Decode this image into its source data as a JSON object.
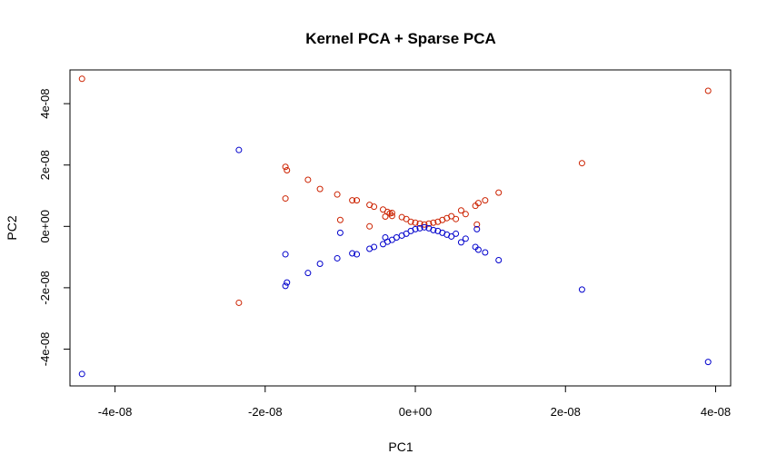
{
  "chart_data": {
    "type": "scatter",
    "title": "Kernel PCA + Sparse PCA",
    "xlabel": "PC1",
    "ylabel": "PC2",
    "xlim": [
      -4.6e-08,
      4.2e-08
    ],
    "ylim": [
      -5.2e-08,
      5.1e-08
    ],
    "grid": false,
    "x_ticks": [
      {
        "value": -4e-08,
        "label": "-4e-08"
      },
      {
        "value": -2e-08,
        "label": "-2e-08"
      },
      {
        "value": 0,
        "label": "0e+00"
      },
      {
        "value": 2e-08,
        "label": "2e-08"
      },
      {
        "value": 4e-08,
        "label": "4e-08"
      }
    ],
    "y_ticks": [
      {
        "value": -4e-08,
        "label": "-4e-08"
      },
      {
        "value": -2e-08,
        "label": "-2e-08"
      },
      {
        "value": 0,
        "label": "0e+00"
      },
      {
        "value": 2e-08,
        "label": "2e-08"
      },
      {
        "value": 4e-08,
        "label": "4e-08"
      }
    ],
    "series": [
      {
        "color": "#CC2200",
        "points": [
          [
            -4.44e-08,
            4.81e-08
          ],
          [
            -2.35e-08,
            -2.49e-08
          ],
          [
            -1.73e-08,
            1.94e-08
          ],
          [
            -1.71e-08,
            1.83e-08
          ],
          [
            -1.73e-08,
            9.1e-09
          ],
          [
            -1.43e-08,
            1.52e-08
          ],
          [
            -1.27e-08,
            1.22e-08
          ],
          [
            -1.04e-08,
            1.04e-08
          ],
          [
            -1e-08,
            2.1e-09
          ],
          [
            -7.8e-09,
            8.5e-09
          ],
          [
            -8.4e-09,
            8.5e-09
          ],
          [
            -6.1e-09,
            7e-09
          ],
          [
            -5.5e-09,
            6.4e-09
          ],
          [
            -6.1e-09,
            0.0
          ],
          [
            -4.3e-09,
            5.5e-09
          ],
          [
            -3.7e-09,
            4.7e-09
          ],
          [
            -3.1e-09,
            4.4e-09
          ],
          [
            -3.4e-09,
            4.2e-09
          ],
          [
            -4e-09,
            3.2e-09
          ],
          [
            -3.1e-09,
            3.4e-09
          ],
          [
            -1.8e-09,
            3e-09
          ],
          [
            -1.2e-09,
            2.4e-09
          ],
          [
            -6e-10,
            1.5e-09
          ],
          [
            0.0,
            1.2e-09
          ],
          [
            6e-10,
            9e-10
          ],
          [
            1.2e-09,
            6e-10
          ],
          [
            1.8e-09,
            9e-10
          ],
          [
            2.4e-09,
            1.2e-09
          ],
          [
            3e-09,
            1.5e-09
          ],
          [
            3.6e-09,
            2.1e-09
          ],
          [
            4.2e-09,
            2.7e-09
          ],
          [
            4.8e-09,
            3.3e-09
          ],
          [
            5.4e-09,
            2.4e-09
          ],
          [
            6.1e-09,
            5.2e-09
          ],
          [
            6.7e-09,
            4e-09
          ],
          [
            8e-09,
            6.7e-09
          ],
          [
            8.4e-09,
            7.6e-09
          ],
          [
            8.2e-09,
            6e-10
          ],
          [
            9.3e-09,
            8.5e-09
          ],
          [
            1.11e-08,
            1.1e-08
          ],
          [
            2.22e-08,
            2.06e-08
          ],
          [
            3.9e-08,
            4.42e-08
          ]
        ]
      },
      {
        "color": "#0000CC",
        "points": [
          [
            -4.44e-08,
            -4.81e-08
          ],
          [
            -2.35e-08,
            2.49e-08
          ],
          [
            -1.73e-08,
            -1.94e-08
          ],
          [
            -1.71e-08,
            -1.83e-08
          ],
          [
            -1.73e-08,
            -9.1e-09
          ],
          [
            -1.43e-08,
            -1.52e-08
          ],
          [
            -1.27e-08,
            -1.22e-08
          ],
          [
            -1.04e-08,
            -1.04e-08
          ],
          [
            -1e-08,
            -2.1e-09
          ],
          [
            -8.4e-09,
            -8.8e-09
          ],
          [
            -7.8e-09,
            -9.1e-09
          ],
          [
            -6.1e-09,
            -7.3e-09
          ],
          [
            -5.5e-09,
            -6.7e-09
          ],
          [
            -4.3e-09,
            -5.8e-09
          ],
          [
            -3.7e-09,
            -5e-09
          ],
          [
            -3.1e-09,
            -4.4e-09
          ],
          [
            -4e-09,
            -3.6e-09
          ],
          [
            -2.5e-09,
            -3.6e-09
          ],
          [
            -1.8e-09,
            -3e-09
          ],
          [
            -1.2e-09,
            -2.4e-09
          ],
          [
            -6e-10,
            -1.5e-09
          ],
          [
            0.0,
            -9e-10
          ],
          [
            6e-10,
            -6e-10
          ],
          [
            1.2e-09,
            -3e-10
          ],
          [
            1.8e-09,
            -6e-10
          ],
          [
            2.4e-09,
            -1.2e-09
          ],
          [
            3e-09,
            -1.5e-09
          ],
          [
            3.6e-09,
            -2.1e-09
          ],
          [
            4.2e-09,
            -2.7e-09
          ],
          [
            4.8e-09,
            -3.3e-09
          ],
          [
            5.4e-09,
            -2.4e-09
          ],
          [
            6.1e-09,
            -5.2e-09
          ],
          [
            6.7e-09,
            -4e-09
          ],
          [
            8e-09,
            -6.7e-09
          ],
          [
            8.4e-09,
            -7.6e-09
          ],
          [
            8.2e-09,
            -9e-10
          ],
          [
            9.3e-09,
            -8.5e-09
          ],
          [
            1.11e-08,
            -1.1e-08
          ],
          [
            2.22e-08,
            -2.06e-08
          ],
          [
            3.9e-08,
            -4.42e-08
          ]
        ]
      }
    ]
  }
}
